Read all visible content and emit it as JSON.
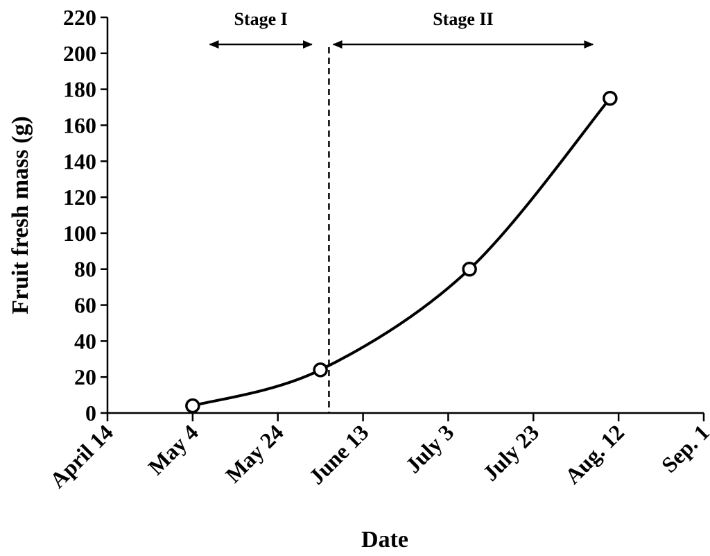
{
  "chart_data": {
    "type": "line",
    "xlabel": "Date",
    "ylabel": "Fruit fresh mass (g)",
    "x_tick_labels": [
      "April 14",
      "May 4",
      "May 24",
      "June 13",
      "July 3",
      "July 23",
      "Aug. 12",
      "Sep. 1"
    ],
    "x_ticks": [
      "04-14",
      "05-04",
      "05-24",
      "06-13",
      "07-03",
      "07-23",
      "08-12",
      "09-01"
    ],
    "xlim": [
      "04-14",
      "09-01"
    ],
    "ylim": [
      0,
      220
    ],
    "y_ticks": [
      0,
      20,
      40,
      60,
      80,
      100,
      120,
      140,
      160,
      180,
      200,
      220
    ],
    "series": [
      {
        "x": [
          "05-04",
          "06-03",
          "07-08",
          "08-10"
        ],
        "y": [
          4,
          24,
          80,
          175
        ],
        "marker": "open-circle",
        "smoothed": true
      }
    ],
    "annotations": [
      {
        "text": "Stage I",
        "arrow_from": "05-08",
        "arrow_to": "06-01"
      },
      {
        "text": "Stage II",
        "arrow_from": "06-06",
        "arrow_to": "08-06"
      }
    ],
    "divider": {
      "x": "06-05",
      "style": "dashed"
    },
    "grid": false,
    "legend": "none"
  }
}
